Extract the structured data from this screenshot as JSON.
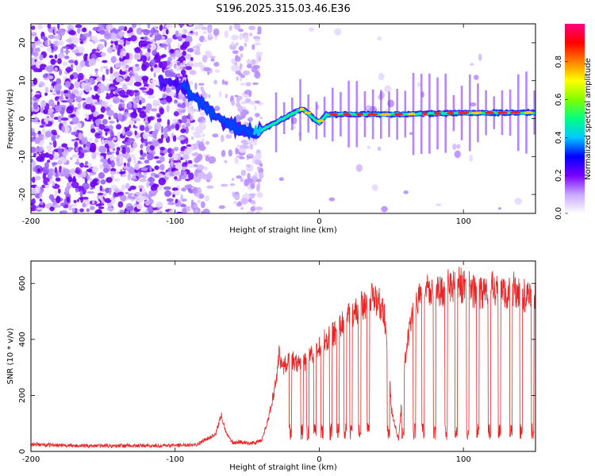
{
  "chart_data": [
    {
      "type": "heatmap",
      "title": "S196.2025.315.03.46.E36",
      "xlabel": "Height of straight line (km)",
      "ylabel": "Frequency (Hz)",
      "xlim": [
        -200,
        150
      ],
      "ylim": [
        -25,
        25
      ],
      "x_ticks": [
        -200,
        -100,
        0,
        100
      ],
      "y_ticks": [
        -20,
        -10,
        0,
        10,
        20
      ],
      "colorbar": {
        "label": "Normalized spectral amplitude",
        "range": [
          0,
          1
        ],
        "ticks": [
          0.0,
          0.2,
          0.4,
          0.6,
          0.8
        ],
        "colors": [
          "#ffffff",
          "#c8a8ff",
          "#7a00ff",
          "#0000ff",
          "#00c8ff",
          "#00ff80",
          "#80ff00",
          "#ffff00",
          "#ff8000",
          "#ff0000",
          "#ff0080"
        ]
      },
      "doppler_track": {
        "x": [
          -150,
          -110,
          -95,
          -85,
          -75,
          -65,
          -55,
          -45,
          -35,
          -30,
          -25,
          -20,
          -15,
          -12,
          -8,
          -4,
          0,
          5,
          20,
          50,
          100,
          150
        ],
        "y": [
          12,
          10,
          9,
          5,
          2,
          -1,
          -3,
          -4,
          -2,
          -1,
          0,
          1,
          2,
          2.5,
          1.5,
          0,
          -1,
          1,
          1.2,
          1.1,
          1.5,
          1.6
        ]
      }
    },
    {
      "type": "line",
      "xlabel": "Height of straight line (km)",
      "ylabel": "SNR (10 * v/v)",
      "xlim": [
        -200,
        150
      ],
      "ylim": [
        0,
        680
      ],
      "x_ticks": [
        -200,
        -100,
        0,
        100
      ],
      "y_ticks": [
        0,
        200,
        400,
        600
      ],
      "series": [
        {
          "name": "SNR",
          "color": "#ee2222",
          "x": [
            -200,
            -170,
            -140,
            -110,
            -85,
            -78,
            -72,
            -68,
            -65,
            -60,
            -55,
            -50,
            -45,
            -40,
            -35,
            -30,
            -28,
            -25,
            -20,
            -15,
            -10,
            -5,
            0,
            5,
            10,
            15,
            20,
            25,
            30,
            35,
            38,
            42,
            45,
            48,
            50,
            55,
            60,
            65,
            70,
            75,
            80,
            85,
            90,
            95,
            100,
            105,
            110,
            115,
            120,
            125,
            130,
            135,
            140,
            145,
            150
          ],
          "y": [
            25,
            20,
            20,
            20,
            25,
            45,
            60,
            130,
            70,
            30,
            35,
            30,
            30,
            40,
            120,
            250,
            350,
            300,
            330,
            310,
            320,
            350,
            380,
            400,
            420,
            450,
            480,
            500,
            520,
            540,
            550,
            530,
            500,
            350,
            150,
            40,
            350,
            500,
            560,
            580,
            560,
            570,
            590,
            600,
            590,
            580,
            560,
            570,
            590,
            570,
            560,
            580,
            560,
            550,
            560
          ]
        }
      ],
      "dropouts": [
        -20,
        -12,
        -8,
        -3,
        2,
        8,
        13,
        18,
        22,
        28,
        34,
        48,
        58,
        66,
        72,
        80,
        88,
        95,
        103,
        110,
        118,
        125,
        133,
        140,
        148
      ]
    }
  ]
}
